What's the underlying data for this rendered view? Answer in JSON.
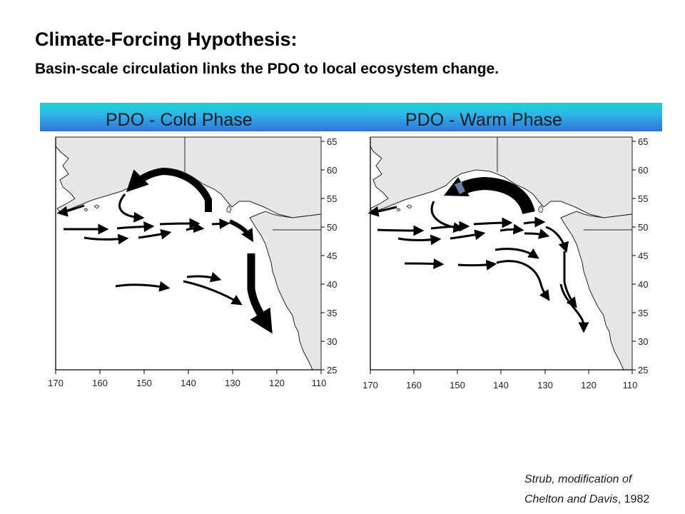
{
  "header": {
    "title": "Climate-Forcing Hypothesis:",
    "subtitle": "Basin-scale circulation links the PDO to local ecosystem change."
  },
  "panels": [
    {
      "label": "PDO - Cold Phase",
      "lon_ticks": [
        "170",
        "160",
        "150",
        "140",
        "130",
        "120",
        "110"
      ],
      "lat_ticks": [
        "65",
        "60",
        "55",
        "50",
        "45",
        "40",
        "35",
        "30",
        "25"
      ]
    },
    {
      "label": "PDO - Warm Phase",
      "lon_ticks": [
        "170",
        "160",
        "150",
        "140",
        "130",
        "120",
        "110"
      ],
      "lat_ticks": [
        "65",
        "60",
        "55",
        "50",
        "45",
        "40",
        "35",
        "30",
        "25"
      ]
    }
  ],
  "citation": {
    "line1_italic": "Strub, modification of",
    "line2_italic": "Chelton and Davis",
    "line2_year": ", 1982"
  },
  "colors": {
    "land": "#e6e6e6",
    "arrow": "#000000",
    "band_top": "#16d3cf",
    "band_bottom": "#2f74d6"
  }
}
